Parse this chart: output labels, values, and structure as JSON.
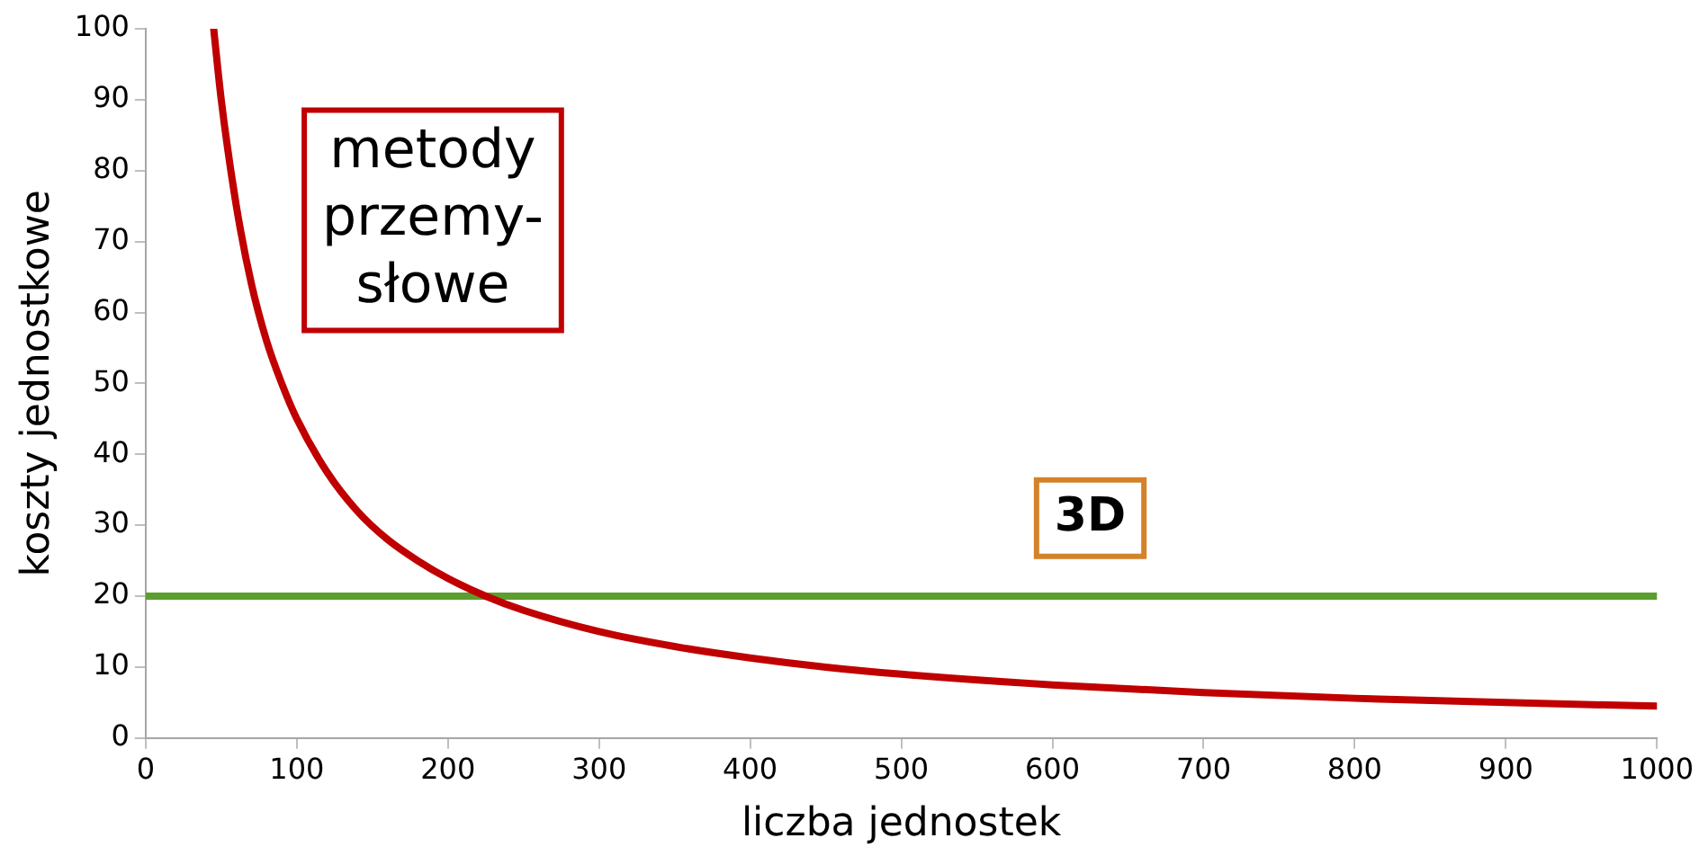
{
  "chart_data": {
    "type": "line",
    "xlabel": "liczba jednostek",
    "ylabel": "koszty jednostkowe",
    "xlim": [
      0,
      1000
    ],
    "ylim": [
      0,
      100
    ],
    "xticks": [
      0,
      100,
      200,
      300,
      400,
      500,
      600,
      700,
      800,
      900,
      1000
    ],
    "yticks": [
      0,
      10,
      20,
      30,
      40,
      50,
      60,
      70,
      80,
      90,
      100
    ],
    "grid": false,
    "legend": false,
    "marker": "none",
    "line_style": "solid",
    "series": [
      {
        "name": "metody przemy-słowe",
        "color": "#c00000",
        "x": [
          45,
          50,
          60,
          70,
          80,
          90,
          100,
          120,
          140,
          160,
          180,
          200,
          225,
          250,
          300,
          350,
          400,
          450,
          500,
          600,
          700,
          800,
          900,
          1000
        ],
        "values": [
          100,
          90,
          75,
          64,
          56,
          50,
          45,
          37.5,
          32,
          28,
          25,
          22.5,
          20,
          18,
          15,
          12.9,
          11.3,
          10,
          9,
          7.5,
          6.4,
          5.6,
          5,
          4.5
        ]
      },
      {
        "name": "3D",
        "color": "#5c9e2e",
        "x": [
          0,
          1000
        ],
        "values": [
          20,
          20
        ]
      }
    ]
  }
}
